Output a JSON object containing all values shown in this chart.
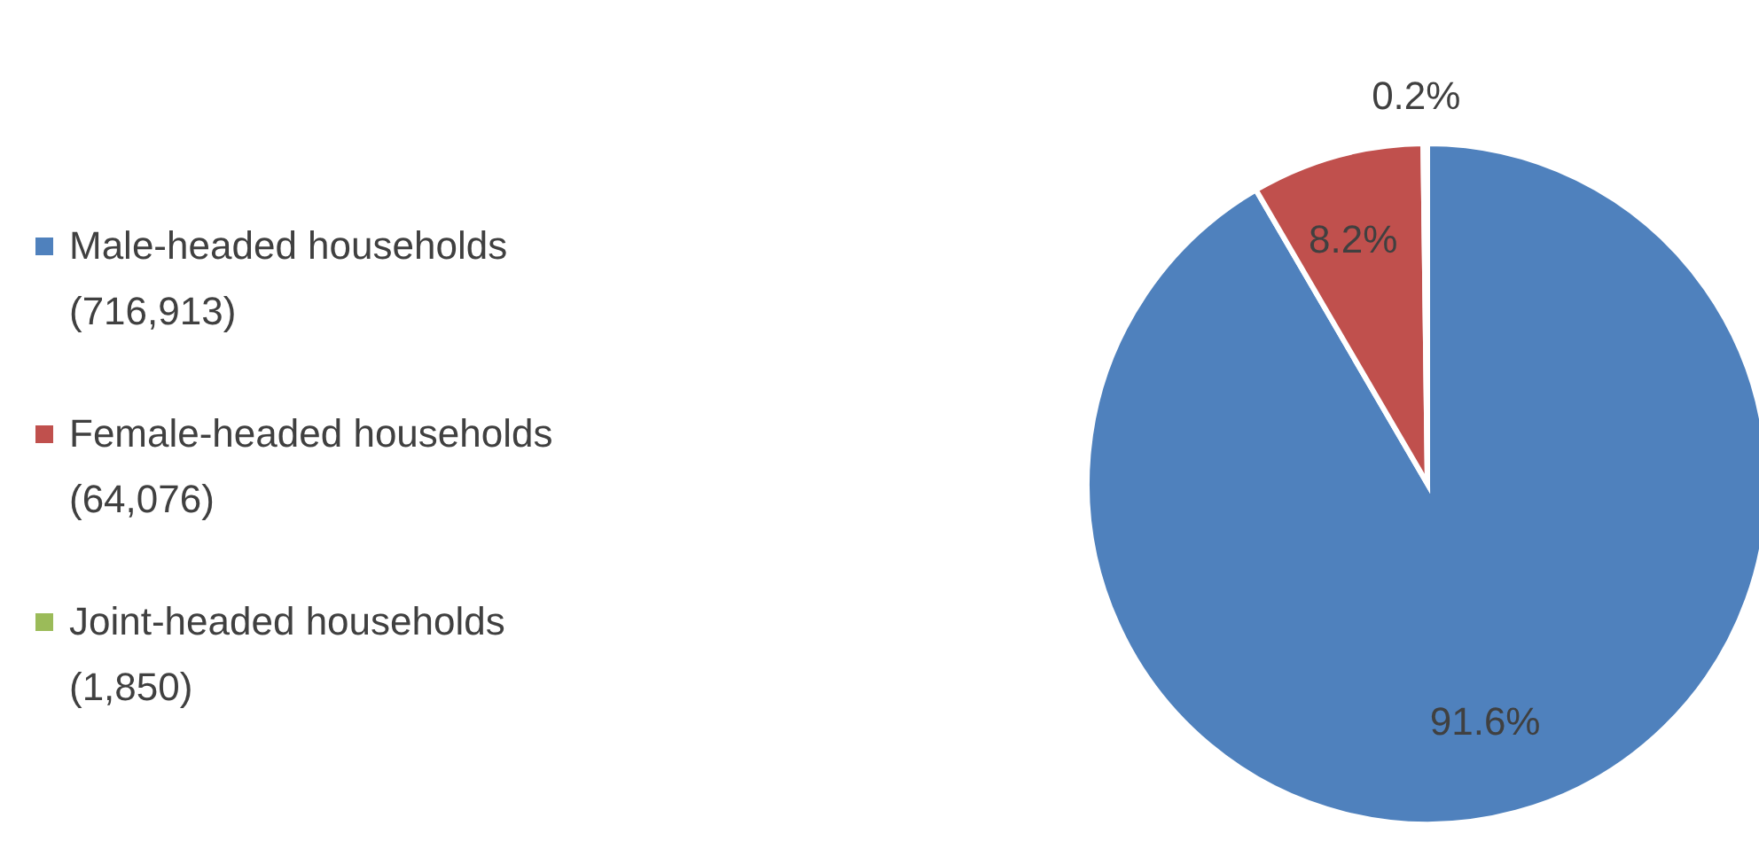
{
  "chart_data": {
    "type": "pie",
    "categories": [
      "Male-headed households (716,913)",
      "Female-headed households (64,076)",
      "Joint-headed households (1,850)"
    ],
    "values": [
      91.6,
      8.2,
      0.2
    ],
    "colors": [
      "#4f81bd",
      "#c0504d",
      "#9bbb59"
    ],
    "value_labels": [
      "91.6%",
      "8.2%",
      "0.2%"
    ],
    "legend": "left"
  }
}
